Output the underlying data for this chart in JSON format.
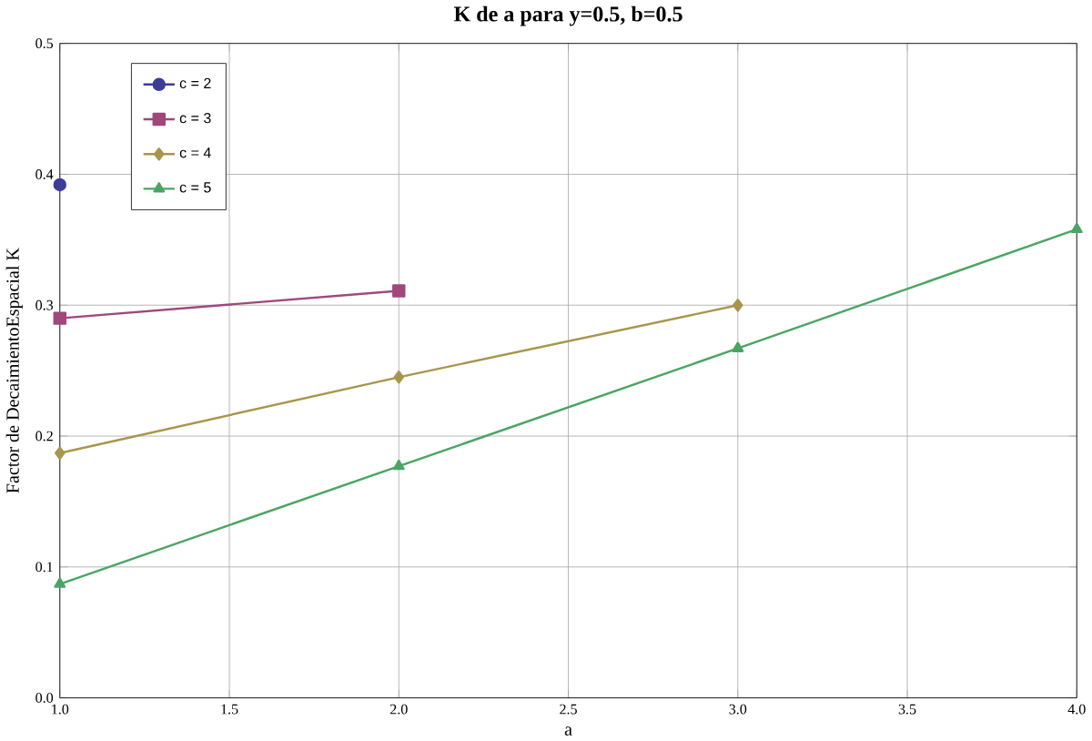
{
  "chart_data": {
    "type": "line",
    "title": "K de a para y=0.5, b=0.5",
    "xlabel": "a",
    "ylabel": "Factor de DecaimientoEspacial K",
    "x": [
      1,
      2,
      3,
      4
    ],
    "series": [
      {
        "name": "c = 2",
        "color": "#3d3d99",
        "marker": "circle",
        "values": [
          0.392,
          null,
          null,
          null
        ]
      },
      {
        "name": "c = 3",
        "color": "#a0477c",
        "marker": "square",
        "values": [
          0.29,
          0.311,
          null,
          null
        ]
      },
      {
        "name": "c = 4",
        "color": "#a8964a",
        "marker": "diamond",
        "values": [
          0.187,
          0.245,
          0.3,
          null
        ]
      },
      {
        "name": "c = 5",
        "color": "#4aa565",
        "marker": "triangle",
        "values": [
          0.087,
          0.177,
          0.267,
          0.358
        ]
      }
    ],
    "xlim": [
      1,
      4
    ],
    "ylim": [
      0,
      0.5
    ],
    "xticks": [
      {
        "value": 1,
        "label": "1.0"
      },
      {
        "value": 1.5,
        "label": "1.5"
      },
      {
        "value": 2,
        "label": "2.0"
      },
      {
        "value": 2.5,
        "label": "2.5"
      },
      {
        "value": 3,
        "label": "3.0"
      },
      {
        "value": 3.5,
        "label": "3.5"
      },
      {
        "value": 4,
        "label": "4.0"
      }
    ],
    "yticks": [
      {
        "value": 0,
        "label": "0.0"
      },
      {
        "value": 0.1,
        "label": "0.1"
      },
      {
        "value": 0.2,
        "label": "0.2"
      },
      {
        "value": 0.3,
        "label": "0.3"
      },
      {
        "value": 0.4,
        "label": "0.4"
      },
      {
        "value": 0.5,
        "label": "0.5"
      }
    ],
    "grid": true,
    "legend": "top left",
    "line_style": "solid"
  }
}
